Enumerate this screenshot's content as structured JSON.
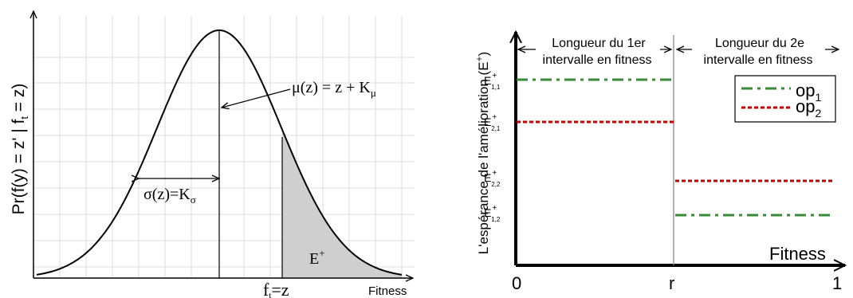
{
  "left_panel": {
    "y_label": "Pr(f(y) = z' | f",
    "y_label_sub": "t",
    "y_label_end": " = z)",
    "x_label": "Fitness",
    "mu_label": "μ(z) = z + K",
    "mu_sub": "μ",
    "sigma_label": "σ(z)=K",
    "sigma_sub": "σ",
    "eplus_label": "E",
    "eplus_sup": "+",
    "ft_label": "f",
    "ft_sub": "t",
    "ft_end": "=z",
    "colors": {
      "curve": "#000000",
      "shade": "#cfcfcf",
      "grid": "#d8d8d8"
    }
  },
  "right_panel": {
    "y_label": "L'espérance de l'amélioration (E",
    "y_label_sup": "+",
    "y_label_end": ")",
    "x_label": "Fitness",
    "ticks": [
      "0",
      "r",
      "1"
    ],
    "interval1_line1": "Longueur du 1er",
    "interval1_line2": "intervalle en fitness",
    "interval2_line1": "Longueur du 2e",
    "interval2_line2": "intervalle en fitness",
    "e_labels": [
      {
        "base": "E",
        "sup": "+",
        "sub": "1,1"
      },
      {
        "base": "E",
        "sup": "+",
        "sub": "2,1"
      },
      {
        "base": "E",
        "sup": "+",
        "sub": "2,2"
      },
      {
        "base": "E",
        "sup": "+",
        "sub": "1,2"
      }
    ],
    "legend": [
      {
        "name": "op",
        "sub": "1",
        "color": "#3a8a3a",
        "style": "dash-dot"
      },
      {
        "name": "op",
        "sub": "2",
        "color": "#c00000",
        "style": "dotted"
      }
    ]
  }
}
